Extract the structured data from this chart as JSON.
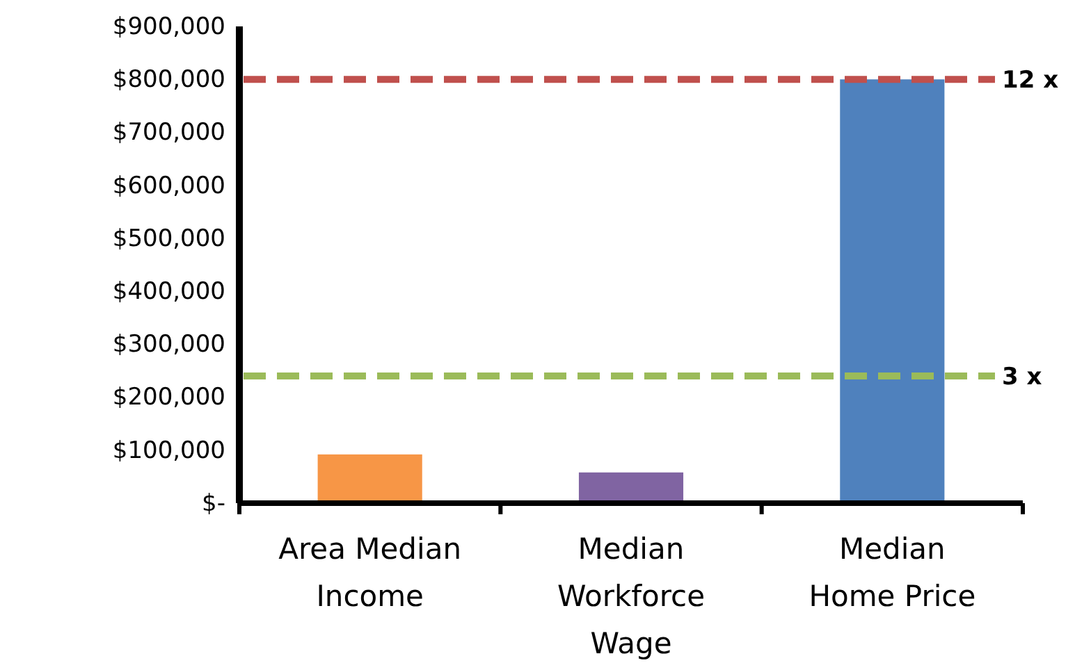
{
  "chart_data": {
    "type": "bar",
    "categories": [
      "Area Median Income",
      "Median Workforce Wage",
      "Median Home Price"
    ],
    "values": [
      92000,
      58000,
      800000
    ],
    "colors": [
      "#f79646",
      "#8064a2",
      "#4f81bd"
    ],
    "ylim": [
      0,
      900000
    ],
    "yticks": [
      {
        "value": 0,
        "label": "$-"
      },
      {
        "value": 100000,
        "label": "$100,000"
      },
      {
        "value": 200000,
        "label": "$200,000"
      },
      {
        "value": 300000,
        "label": "$300,000"
      },
      {
        "value": 400000,
        "label": "$400,000"
      },
      {
        "value": 500000,
        "label": "$500,000"
      },
      {
        "value": 600000,
        "label": "$600,000"
      },
      {
        "value": 700000,
        "label": "$700,000"
      },
      {
        "value": 800000,
        "label": "$800,000"
      },
      {
        "value": 900000,
        "label": "$900,000"
      }
    ],
    "ref_lines": [
      {
        "axis": "y",
        "value": 800000,
        "label": "12 x",
        "color": "#c0504d",
        "line_style": "dashed"
      },
      {
        "axis": "y",
        "value": 240000,
        "label": "3 x",
        "color": "#9bbb59",
        "line_style": "dashed"
      }
    ],
    "grid": false
  }
}
